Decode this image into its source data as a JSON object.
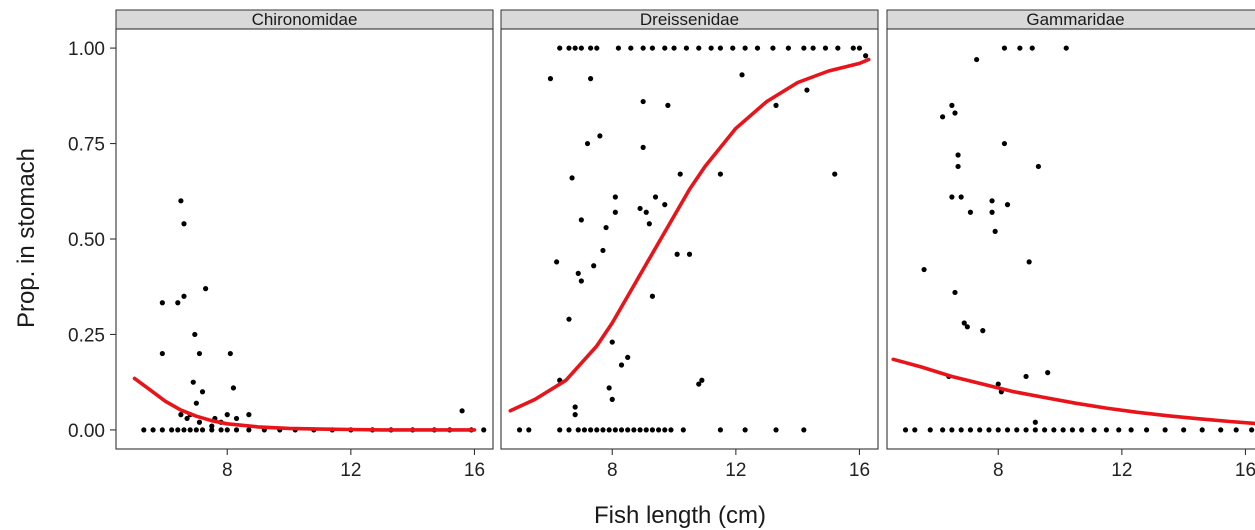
{
  "chart_data": {
    "type": "scatter",
    "xlabel": "Fish length (cm)",
    "ylabel": "Prop. in stomach",
    "xlim": [
      4.4,
      16.6
    ],
    "ylim": [
      -0.05,
      1.05
    ],
    "x_ticks": [
      8,
      12,
      16
    ],
    "x_tick_labels": [
      "8",
      "12",
      "16"
    ],
    "y_ticks": [
      0,
      0.25,
      0.5,
      0.75,
      1
    ],
    "y_tick_labels": [
      "0.00",
      "0.25",
      "0.50",
      "0.75",
      "1.00"
    ],
    "grid": false,
    "colors": {
      "points": "#000000",
      "fit_line": "#e8141a",
      "strip_bg": "#d9d9d9",
      "panel_border": "#333333"
    },
    "panels": [
      {
        "facet": "Chironomidae",
        "fit_line": {
          "x": [
            5.0,
            5.5,
            6.0,
            6.5,
            7.0,
            7.5,
            8.0,
            9.0,
            10.0,
            11.0,
            12.0,
            13.0,
            14.0,
            15.0,
            16.0
          ],
          "y": [
            0.135,
            0.105,
            0.075,
            0.052,
            0.036,
            0.024,
            0.016,
            0.008,
            0.004,
            0.002,
            0.001,
            0.0,
            0.0,
            0.0,
            0.0
          ]
        },
        "points": [
          [
            5.3,
            0.0
          ],
          [
            5.6,
            0.0
          ],
          [
            5.9,
            0.0
          ],
          [
            6.2,
            0.0
          ],
          [
            6.4,
            0.0
          ],
          [
            6.6,
            0.0
          ],
          [
            6.8,
            0.0
          ],
          [
            7.0,
            0.0
          ],
          [
            7.2,
            0.0
          ],
          [
            7.5,
            0.0
          ],
          [
            7.8,
            0.0
          ],
          [
            8.0,
            0.0
          ],
          [
            8.3,
            0.0
          ],
          [
            8.7,
            0.0
          ],
          [
            9.2,
            0.0
          ],
          [
            9.7,
            0.0
          ],
          [
            10.2,
            0.0
          ],
          [
            10.8,
            0.0
          ],
          [
            11.4,
            0.0
          ],
          [
            12.0,
            0.0
          ],
          [
            12.7,
            0.0
          ],
          [
            13.3,
            0.0
          ],
          [
            14.0,
            0.0
          ],
          [
            14.7,
            0.0
          ],
          [
            15.2,
            0.0
          ],
          [
            15.9,
            0.0
          ],
          [
            16.3,
            0.0
          ],
          [
            5.9,
            0.2
          ],
          [
            5.9,
            0.333
          ],
          [
            6.4,
            0.333
          ],
          [
            6.5,
            0.6
          ],
          [
            6.6,
            0.54
          ],
          [
            6.6,
            0.35
          ],
          [
            6.5,
            0.04
          ],
          [
            6.7,
            0.03
          ],
          [
            6.8,
            0.04
          ],
          [
            6.9,
            0.125
          ],
          [
            6.95,
            0.25
          ],
          [
            7.0,
            0.07
          ],
          [
            7.1,
            0.2
          ],
          [
            7.1,
            0.02
          ],
          [
            7.2,
            0.1
          ],
          [
            7.3,
            0.37
          ],
          [
            7.5,
            0.01
          ],
          [
            7.6,
            0.03
          ],
          [
            7.8,
            0.02
          ],
          [
            8.0,
            0.04
          ],
          [
            8.1,
            0.2
          ],
          [
            8.2,
            0.11
          ],
          [
            8.3,
            0.03
          ],
          [
            8.7,
            0.04
          ],
          [
            15.6,
            0.05
          ]
        ]
      },
      {
        "facet": "Dreissenidae",
        "fit_line": {
          "x": [
            4.7,
            5.5,
            6.5,
            7.5,
            8.0,
            9.0,
            10.0,
            10.5,
            11.0,
            12.0,
            13.0,
            14.0,
            15.0,
            16.0,
            16.3
          ],
          "y": [
            0.05,
            0.08,
            0.13,
            0.22,
            0.28,
            0.42,
            0.56,
            0.63,
            0.69,
            0.79,
            0.86,
            0.91,
            0.94,
            0.96,
            0.97
          ]
        },
        "points": [
          [
            5.0,
            0.0
          ],
          [
            5.3,
            0.0
          ],
          [
            6.3,
            0.0
          ],
          [
            6.6,
            0.0
          ],
          [
            6.9,
            0.0
          ],
          [
            7.1,
            0.0
          ],
          [
            7.3,
            0.0
          ],
          [
            7.5,
            0.0
          ],
          [
            7.7,
            0.0
          ],
          [
            7.9,
            0.0
          ],
          [
            8.1,
            0.0
          ],
          [
            8.3,
            0.0
          ],
          [
            8.5,
            0.0
          ],
          [
            8.7,
            0.0
          ],
          [
            8.9,
            0.0
          ],
          [
            9.1,
            0.0
          ],
          [
            9.3,
            0.0
          ],
          [
            9.5,
            0.0
          ],
          [
            9.7,
            0.0
          ],
          [
            9.9,
            0.0
          ],
          [
            10.3,
            0.0
          ],
          [
            11.5,
            0.0
          ],
          [
            12.3,
            0.0
          ],
          [
            13.3,
            0.0
          ],
          [
            14.2,
            0.0
          ],
          [
            6.0,
            0.92
          ],
          [
            6.2,
            0.44
          ],
          [
            6.3,
            0.13
          ],
          [
            6.6,
            0.29
          ],
          [
            6.7,
            0.66
          ],
          [
            6.8,
            0.06
          ],
          [
            6.8,
            0.04
          ],
          [
            6.9,
            0.41
          ],
          [
            7.0,
            0.39
          ],
          [
            7.0,
            0.55
          ],
          [
            7.2,
            0.75
          ],
          [
            7.3,
            0.92
          ],
          [
            7.4,
            0.43
          ],
          [
            7.6,
            0.77
          ],
          [
            7.7,
            0.47
          ],
          [
            7.8,
            0.53
          ],
          [
            7.9,
            0.11
          ],
          [
            8.0,
            0.08
          ],
          [
            8.0,
            0.23
          ],
          [
            8.1,
            0.61
          ],
          [
            8.1,
            0.57
          ],
          [
            8.3,
            0.17
          ],
          [
            8.5,
            0.19
          ],
          [
            8.9,
            0.58
          ],
          [
            9.0,
            0.86
          ],
          [
            9.0,
            0.74
          ],
          [
            9.1,
            0.57
          ],
          [
            9.2,
            0.54
          ],
          [
            9.3,
            0.35
          ],
          [
            9.4,
            0.61
          ],
          [
            9.7,
            0.59
          ],
          [
            9.8,
            0.85
          ],
          [
            10.1,
            0.46
          ],
          [
            10.2,
            0.67
          ],
          [
            10.5,
            0.46
          ],
          [
            10.8,
            0.12
          ],
          [
            10.9,
            0.13
          ],
          [
            11.5,
            0.67
          ],
          [
            12.2,
            0.93
          ],
          [
            13.3,
            0.85
          ],
          [
            14.3,
            0.89
          ],
          [
            15.2,
            0.67
          ],
          [
            16.2,
            0.98
          ],
          [
            6.3,
            1.0
          ],
          [
            6.6,
            1.0
          ],
          [
            6.8,
            1.0
          ],
          [
            7.0,
            1.0
          ],
          [
            7.3,
            1.0
          ],
          [
            7.5,
            1.0
          ],
          [
            8.2,
            1.0
          ],
          [
            8.6,
            1.0
          ],
          [
            9.0,
            1.0
          ],
          [
            9.3,
            1.0
          ],
          [
            9.7,
            1.0
          ],
          [
            10.0,
            1.0
          ],
          [
            10.4,
            1.0
          ],
          [
            10.8,
            1.0
          ],
          [
            11.2,
            1.0
          ],
          [
            11.5,
            1.0
          ],
          [
            11.9,
            1.0
          ],
          [
            12.3,
            1.0
          ],
          [
            12.7,
            1.0
          ],
          [
            13.2,
            1.0
          ],
          [
            13.7,
            1.0
          ],
          [
            14.2,
            1.0
          ],
          [
            14.5,
            1.0
          ],
          [
            14.9,
            1.0
          ],
          [
            15.3,
            1.0
          ],
          [
            15.8,
            1.0
          ],
          [
            16.0,
            1.0
          ]
        ]
      },
      {
        "facet": "Gammaridae",
        "fit_line": {
          "x": [
            4.6,
            5.5,
            6.5,
            7.5,
            8.5,
            9.5,
            10.5,
            11.5,
            12.5,
            13.5,
            14.5,
            15.5,
            16.3
          ],
          "y": [
            0.185,
            0.165,
            0.14,
            0.12,
            0.1,
            0.085,
            0.07,
            0.057,
            0.046,
            0.037,
            0.029,
            0.022,
            0.017
          ]
        },
        "points": [
          [
            5.0,
            0.0
          ],
          [
            5.3,
            0.0
          ],
          [
            5.8,
            0.0
          ],
          [
            6.2,
            0.0
          ],
          [
            6.5,
            0.0
          ],
          [
            6.8,
            0.0
          ],
          [
            7.1,
            0.0
          ],
          [
            7.4,
            0.0
          ],
          [
            7.7,
            0.0
          ],
          [
            8.0,
            0.0
          ],
          [
            8.3,
            0.0
          ],
          [
            8.6,
            0.0
          ],
          [
            8.9,
            0.0
          ],
          [
            9.2,
            0.0
          ],
          [
            9.5,
            0.0
          ],
          [
            9.8,
            0.0
          ],
          [
            10.1,
            0.0
          ],
          [
            10.4,
            0.0
          ],
          [
            10.7,
            0.0
          ],
          [
            11.1,
            0.0
          ],
          [
            11.5,
            0.0
          ],
          [
            11.9,
            0.0
          ],
          [
            12.3,
            0.0
          ],
          [
            12.8,
            0.0
          ],
          [
            13.4,
            0.0
          ],
          [
            14.0,
            0.0
          ],
          [
            14.6,
            0.0
          ],
          [
            15.2,
            0.0
          ],
          [
            15.7,
            0.0
          ],
          [
            16.2,
            0.0
          ],
          [
            5.6,
            0.42
          ],
          [
            6.2,
            0.82
          ],
          [
            6.4,
            0.14
          ],
          [
            6.5,
            0.85
          ],
          [
            6.5,
            0.61
          ],
          [
            6.6,
            0.36
          ],
          [
            6.6,
            0.83
          ],
          [
            6.7,
            0.72
          ],
          [
            6.7,
            0.69
          ],
          [
            6.8,
            0.61
          ],
          [
            6.9,
            0.28
          ],
          [
            7.0,
            0.27
          ],
          [
            7.1,
            0.57
          ],
          [
            7.3,
            0.97
          ],
          [
            7.5,
            0.26
          ],
          [
            7.8,
            0.6
          ],
          [
            7.8,
            0.57
          ],
          [
            7.9,
            0.52
          ],
          [
            8.0,
            0.12
          ],
          [
            8.1,
            0.1
          ],
          [
            8.2,
            0.75
          ],
          [
            8.3,
            0.59
          ],
          [
            8.7,
            1.0
          ],
          [
            8.9,
            0.14
          ],
          [
            9.0,
            0.44
          ],
          [
            9.1,
            1.0
          ],
          [
            9.2,
            0.02
          ],
          [
            9.3,
            0.69
          ],
          [
            9.6,
            0.15
          ],
          [
            10.2,
            1.0
          ],
          [
            8.2,
            1.0
          ]
        ]
      }
    ]
  }
}
